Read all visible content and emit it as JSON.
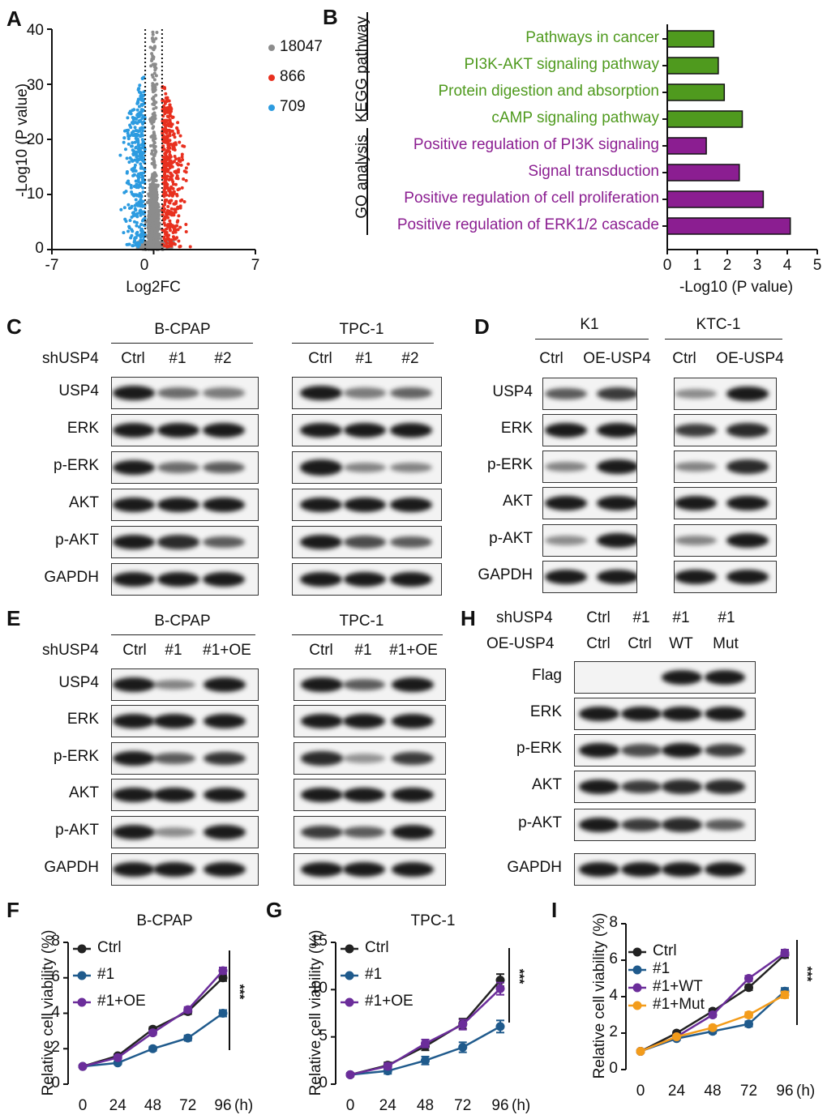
{
  "panels": [
    "A",
    "B",
    "C",
    "D",
    "E",
    "F",
    "G",
    "H",
    "I"
  ],
  "volcano": {
    "xlabel": "Log2FC",
    "ylabel": "-Log10 (P value)",
    "xticks": [
      "-7",
      "0",
      "7"
    ],
    "yticks": [
      "0",
      "10",
      "20",
      "30",
      "40"
    ],
    "legend": [
      {
        "label": "18047",
        "color": "#8c8c8c"
      },
      {
        "label": "866",
        "color": "#e8301f"
      },
      {
        "label": "709",
        "color": "#2c9be0"
      }
    ],
    "xlim": [
      -7,
      7
    ],
    "ylim": [
      0,
      40
    ]
  },
  "enrichment": {
    "xlabel": "-Log10 (P value)",
    "xticks": [
      "0",
      "1",
      "2",
      "3",
      "4",
      "5"
    ],
    "xlim": [
      0,
      5
    ],
    "groups": [
      {
        "name": "KEGG pathway",
        "color": "#4f9a1e"
      },
      {
        "name": "GO analysis",
        "color": "#8b1e91"
      }
    ],
    "terms": [
      {
        "label": "Pathways in cancer",
        "value": 1.55,
        "group": 0
      },
      {
        "label": "PI3K-AKT signaling pathway",
        "value": 1.7,
        "group": 0
      },
      {
        "label": "Protein digestion and absorption",
        "value": 1.9,
        "group": 0
      },
      {
        "label": "cAMP signaling pathway",
        "value": 2.5,
        "group": 0
      },
      {
        "label": "Positive regulation of PI3K signaling",
        "value": 1.3,
        "group": 1
      },
      {
        "label": "Signal transduction",
        "value": 2.4,
        "group": 1
      },
      {
        "label": "Positive regulation of cell proliferation",
        "value": 3.2,
        "group": 1
      },
      {
        "label": "Positive regulation of ERK1/2 cascade",
        "value": 4.1,
        "group": 1
      }
    ]
  },
  "blotC": {
    "row_label": "shUSP4",
    "cells": [
      "B-CPAP",
      "TPC-1"
    ],
    "lanes": [
      "Ctrl",
      "#1",
      "#2"
    ],
    "proteins": [
      "USP4",
      "ERK",
      "p-ERK",
      "AKT",
      "p-AKT",
      "GAPDH"
    ]
  },
  "blotD": {
    "cells": [
      "K1",
      "KTC-1"
    ],
    "lanes": [
      "Ctrl",
      "OE-USP4"
    ],
    "proteins": [
      "USP4",
      "ERK",
      "p-ERK",
      "AKT",
      "p-AKT",
      "GAPDH"
    ]
  },
  "blotE": {
    "row_label": "shUSP4",
    "cells": [
      "B-CPAP",
      "TPC-1"
    ],
    "lanes": [
      "Ctrl",
      "#1",
      "#1+OE"
    ],
    "proteins": [
      "USP4",
      "ERK",
      "p-ERK",
      "AKT",
      "p-AKT",
      "GAPDH"
    ]
  },
  "blotH": {
    "row1_label": "shUSP4",
    "row2_label": "OE-USP4",
    "row1": [
      "Ctrl",
      "#1",
      "#1",
      "#1"
    ],
    "row2": [
      "Ctrl",
      "Ctrl",
      "WT",
      "Mut"
    ],
    "proteins": [
      "Flag",
      "ERK",
      "p-ERK",
      "AKT",
      "p-AKT",
      "GAPDH"
    ]
  },
  "chart_data": [
    {
      "type": "line",
      "panel": "F",
      "title": "B-CPAP",
      "xlabel": "(h)",
      "ylabel": "Relative cell viability (%)",
      "x": [
        0,
        24,
        48,
        72,
        96
      ],
      "ylim": [
        0,
        8
      ],
      "yticks": [
        "0",
        "2",
        "4",
        "6",
        "8"
      ],
      "significance": "***",
      "series": [
        {
          "name": "Ctrl",
          "color": "#222222",
          "values": [
            1.0,
            1.6,
            3.1,
            4.1,
            6.0
          ]
        },
        {
          "name": "#1",
          "color": "#1f5a8c",
          "values": [
            1.0,
            1.2,
            2.0,
            2.6,
            4.0
          ]
        },
        {
          "name": "#1+OE",
          "color": "#6b2d9a",
          "values": [
            1.0,
            1.5,
            2.9,
            4.2,
            6.4
          ]
        }
      ]
    },
    {
      "type": "line",
      "panel": "G",
      "title": "TPC-1",
      "xlabel": "(h)",
      "ylabel": "Relative cell viability (%)",
      "x": [
        0,
        24,
        48,
        72,
        96
      ],
      "ylim": [
        0,
        15
      ],
      "yticks": [
        "0",
        "5",
        "10",
        "15"
      ],
      "significance": "***",
      "series": [
        {
          "name": "Ctrl",
          "color": "#222222",
          "values": [
            1.0,
            2.0,
            4.0,
            6.4,
            11.0
          ]
        },
        {
          "name": "#1",
          "color": "#1f5a8c",
          "values": [
            1.0,
            1.4,
            2.5,
            3.9,
            6.1
          ]
        },
        {
          "name": "#1+OE",
          "color": "#6b2d9a",
          "values": [
            1.0,
            1.9,
            4.3,
            6.3,
            10.1
          ]
        }
      ]
    },
    {
      "type": "line",
      "panel": "I",
      "xlabel": "(h)",
      "ylabel": "Relative cell viability (%)",
      "x": [
        0,
        24,
        48,
        72,
        96
      ],
      "ylim": [
        0,
        8
      ],
      "yticks": [
        "0",
        "2",
        "4",
        "6",
        "8"
      ],
      "significance": "***",
      "series": [
        {
          "name": "Ctrl",
          "color": "#222222",
          "values": [
            1.0,
            2.0,
            3.2,
            4.5,
            6.3
          ]
        },
        {
          "name": "#1",
          "color": "#1f5a8c",
          "values": [
            1.0,
            1.7,
            2.1,
            2.5,
            4.3
          ]
        },
        {
          "name": "#1+WT",
          "color": "#6b2d9a",
          "values": [
            1.0,
            1.8,
            3.0,
            5.0,
            6.4
          ]
        },
        {
          "name": "#1+Mut",
          "color": "#f39c1b",
          "values": [
            1.0,
            1.8,
            2.3,
            3.0,
            4.1
          ]
        }
      ]
    }
  ],
  "blot_intensity": {
    "C_BCPAP": [
      [
        1,
        0.5,
        0.4
      ],
      [
        1,
        1,
        1
      ],
      [
        1,
        0.5,
        0.6
      ],
      [
        1,
        1,
        1
      ],
      [
        1,
        0.9,
        0.6
      ],
      [
        1,
        1,
        1
      ]
    ],
    "C_TPC1": [
      [
        1,
        0.4,
        0.55
      ],
      [
        1,
        1,
        1
      ],
      [
        1.2,
        0.35,
        0.35
      ],
      [
        1,
        1,
        1
      ],
      [
        1,
        0.7,
        0.6
      ],
      [
        1,
        1,
        1
      ]
    ],
    "D_K1": [
      [
        0.6,
        0.8
      ],
      [
        1,
        1
      ],
      [
        0.35,
        1
      ],
      [
        1,
        1
      ],
      [
        0.3,
        1
      ],
      [
        1,
        1
      ]
    ],
    "D_KTC1": [
      [
        0.3,
        1.1
      ],
      [
        0.8,
        0.9
      ],
      [
        0.35,
        0.9
      ],
      [
        1,
        1
      ],
      [
        0.35,
        1
      ],
      [
        1,
        1
      ]
    ],
    "E_BCPAP": [
      [
        1,
        0.35,
        1
      ],
      [
        1,
        1,
        1
      ],
      [
        1,
        0.6,
        0.85
      ],
      [
        1,
        1,
        1
      ],
      [
        1,
        0.3,
        1
      ],
      [
        1,
        1,
        1
      ]
    ],
    "E_TPC1": [
      [
        1.1,
        0.6,
        1
      ],
      [
        1,
        1,
        1
      ],
      [
        0.9,
        0.25,
        0.8
      ],
      [
        1,
        1,
        1
      ],
      [
        0.8,
        0.6,
        1
      ],
      [
        1,
        1,
        1
      ]
    ],
    "H": [
      [
        0,
        0,
        1,
        1
      ],
      [
        1,
        1,
        1,
        1
      ],
      [
        1,
        0.7,
        1,
        0.8
      ],
      [
        1,
        0.8,
        0.9,
        0.9
      ],
      [
        1,
        0.8,
        0.9,
        0.6
      ],
      [
        1,
        1,
        1,
        1
      ]
    ]
  }
}
